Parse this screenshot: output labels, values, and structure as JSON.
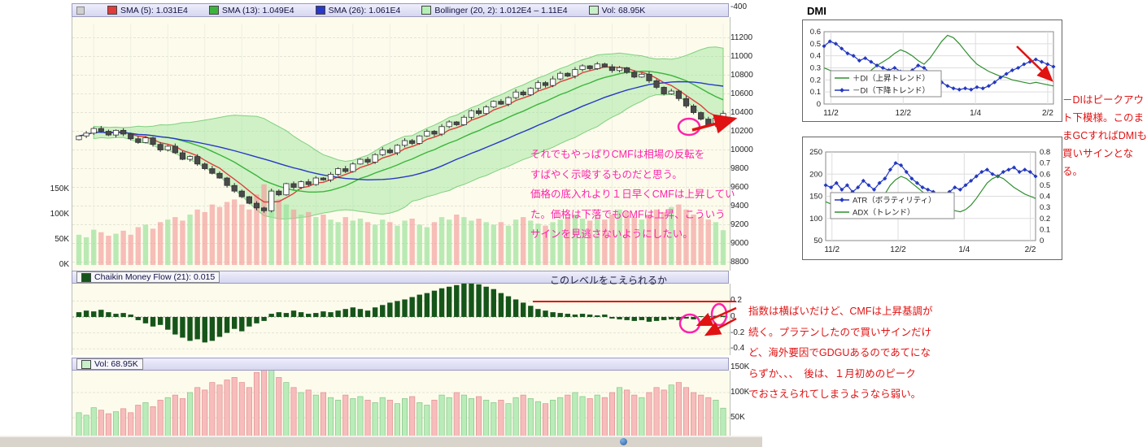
{
  "main_chart": {
    "legend": [
      {
        "label": "SMA (5): 1.031E4",
        "color": "#e03c3c"
      },
      {
        "label": "SMA (13): 1.049E4",
        "color": "#3cb43c"
      },
      {
        "label": "SMA (26): 1.061E4",
        "color": "#2838c8"
      },
      {
        "label": "Bollinger (20, 2): 1.012E4 – 1.11E4",
        "color": "#b4f0b4"
      },
      {
        "label": "Vol: 68.95K",
        "color": "#c8f0c8"
      }
    ],
    "top_axis_label": "-400",
    "price_axis_labels": [
      "11200",
      "11000",
      "10800",
      "10600",
      "10400",
      "10200",
      "10000",
      "9800",
      "9600",
      "9400",
      "9200",
      "9000",
      "8800"
    ],
    "volume_axis_labels": [
      "150K",
      "100K",
      "50K",
      "0K"
    ]
  },
  "cmf_panel": {
    "legend_label": "Chaikin Money Flow (21): 0.015",
    "legend_color": "#16551a",
    "axis_labels": [
      "0.2",
      "0",
      "-0.2",
      "-0.4"
    ]
  },
  "vol_panel": {
    "legend_label": "Vol: 68.95K",
    "legend_color": "#c8f0c8",
    "axis_labels": [
      "150K",
      "100K",
      "50K"
    ]
  },
  "annotations": {
    "pink_color": "#ff22aa",
    "red_color": "#e01212",
    "pink_note_lines": [
      "それでもやっぱりCMFは相場の反転を",
      "すばやく示唆するものだと思う。",
      "価格の底入れより１日早くCMFは上昇してい",
      "た。価格は下落でもCMFは上昇、こういう",
      "サインを見逃さないようにしたい。"
    ],
    "cmf_level_label": "このレベルをこえられるか",
    "dmi_note_lines": [
      "－DIはピークアウ",
      "ト下模様。このま",
      "まGCすればDMIも",
      "買いサインとな",
      "る。"
    ],
    "cmf_note_lines": [
      "指数は横ばいだけど、CMFは上昇基調が",
      "続く。プラテンしたので買いサインだけ",
      "ど、海外要因でGDGUあるのであてにな",
      "らずか、、、　後は、１月初めのピーク",
      "でおさえられてしまうようなら弱い。"
    ]
  },
  "chart_data": [
    {
      "name": "price",
      "type": "candlestick",
      "ylim": [
        8800,
        11300
      ],
      "close": [
        10150,
        10180,
        10230,
        10200,
        10160,
        10210,
        10170,
        10120,
        10080,
        10130,
        10060,
        10000,
        10040,
        9970,
        9900,
        9930,
        9850,
        9800,
        9750,
        9700,
        9620,
        9560,
        9500,
        9430,
        9380,
        9350,
        9560,
        9520,
        9640,
        9600,
        9660,
        9630,
        9700,
        9680,
        9740,
        9800,
        9770,
        9850,
        9900,
        9870,
        9950,
        10000,
        9970,
        10050,
        10100,
        10070,
        10150,
        10200,
        10170,
        10250,
        10300,
        10270,
        10350,
        10420,
        10390,
        10460,
        10520,
        10490,
        10560,
        10620,
        10590,
        10660,
        10720,
        10690,
        10760,
        10820,
        10790,
        10860,
        10900,
        10870,
        10920,
        10890,
        10850,
        10880,
        10830,
        10780,
        10810,
        10740,
        10670,
        10600,
        10630,
        10550,
        10470,
        10400,
        10330,
        10270,
        10340,
        10390
      ],
      "volume_k": [
        60,
        55,
        70,
        65,
        58,
        62,
        68,
        60,
        75,
        80,
        72,
        85,
        90,
        95,
        88,
        100,
        110,
        105,
        120,
        115,
        125,
        130,
        120,
        110,
        140,
        160,
        150,
        130,
        120,
        110,
        100,
        105,
        95,
        100,
        90,
        85,
        95,
        88,
        92,
        85,
        80,
        90,
        85,
        78,
        88,
        92,
        80,
        75,
        85,
        95,
        90,
        100,
        95,
        88,
        92,
        85,
        80,
        85,
        78,
        90,
        95,
        88,
        82,
        78,
        85,
        90,
        95,
        100,
        92,
        88,
        95,
        90,
        100,
        110,
        105,
        95,
        90,
        100,
        110,
        105,
        115,
        120,
        110,
        100,
        95,
        90,
        85,
        69
      ]
    },
    {
      "name": "cmf",
      "type": "bar",
      "ylim": [
        -0.45,
        0.45
      ],
      "level_line": 0.17,
      "values": [
        0.06,
        0.08,
        0.07,
        0.09,
        0.06,
        0.04,
        0.05,
        0.03,
        -0.04,
        -0.08,
        -0.12,
        -0.1,
        -0.16,
        -0.22,
        -0.26,
        -0.3,
        -0.28,
        -0.32,
        -0.3,
        -0.25,
        -0.2,
        -0.15,
        -0.18,
        -0.12,
        -0.08,
        -0.05,
        0.04,
        0.06,
        0.05,
        0.08,
        0.06,
        0.04,
        0.05,
        0.07,
        0.06,
        0.08,
        0.1,
        0.12,
        0.1,
        0.08,
        0.12,
        0.15,
        0.18,
        0.2,
        0.22,
        0.25,
        0.28,
        0.3,
        0.33,
        0.36,
        0.38,
        0.4,
        0.42,
        0.44,
        0.41,
        0.38,
        0.35,
        0.3,
        0.26,
        0.22,
        0.18,
        0.14,
        0.1,
        0.08,
        0.06,
        0.05,
        0.04,
        0.03,
        0.04,
        0.03,
        0.02,
        0.03,
        -0.02,
        -0.03,
        -0.04,
        -0.05,
        -0.04,
        -0.06,
        -0.05,
        -0.04,
        -0.03,
        -0.04,
        -0.02,
        -0.03,
        0.01,
        0.01,
        0.015,
        0.015
      ]
    },
    {
      "name": "volume",
      "type": "bar",
      "unit": "K",
      "ylim_k": [
        0,
        160
      ],
      "values_k": [
        60,
        55,
        70,
        65,
        58,
        62,
        68,
        60,
        75,
        80,
        72,
        85,
        90,
        95,
        88,
        100,
        110,
        105,
        120,
        115,
        125,
        130,
        120,
        110,
        140,
        160,
        150,
        130,
        120,
        110,
        100,
        105,
        95,
        100,
        90,
        85,
        95,
        88,
        92,
        85,
        80,
        90,
        85,
        78,
        88,
        92,
        80,
        75,
        85,
        95,
        90,
        100,
        95,
        88,
        92,
        85,
        80,
        85,
        78,
        90,
        95,
        88,
        82,
        78,
        85,
        90,
        95,
        100,
        92,
        88,
        95,
        90,
        100,
        110,
        105,
        95,
        90,
        100,
        110,
        105,
        115,
        120,
        110,
        100,
        95,
        90,
        85,
        69
      ]
    },
    {
      "name": "dmi",
      "type": "line",
      "title": "DMI",
      "ylim": [
        0,
        0.6
      ],
      "y_tick_labels": [
        "0.6",
        "0.5",
        "0.4",
        "0.3",
        "0.2",
        "0.1",
        "0"
      ],
      "x_tick_labels": [
        "11/2",
        "12/2",
        "1/4",
        "2/2"
      ],
      "series": [
        {
          "name": "＋DI（上昇トレンド）",
          "color": "#2f8f2f",
          "values": [
            0.3,
            0.28,
            0.26,
            0.25,
            0.27,
            0.24,
            0.22,
            0.25,
            0.28,
            0.32,
            0.35,
            0.38,
            0.42,
            0.45,
            0.43,
            0.4,
            0.36,
            0.33,
            0.38,
            0.45,
            0.52,
            0.57,
            0.55,
            0.5,
            0.44,
            0.38,
            0.33,
            0.3,
            0.27,
            0.25,
            0.23,
            0.22,
            0.2,
            0.19,
            0.18,
            0.17,
            0.18,
            0.17,
            0.16,
            0.15
          ]
        },
        {
          "name": "－DI（下降トレンド）",
          "color": "#2438c0",
          "marker": "diamond",
          "values": [
            0.48,
            0.52,
            0.5,
            0.46,
            0.42,
            0.4,
            0.36,
            0.38,
            0.35,
            0.32,
            0.3,
            0.28,
            0.3,
            0.27,
            0.25,
            0.28,
            0.32,
            0.3,
            0.26,
            0.22,
            0.18,
            0.15,
            0.13,
            0.12,
            0.13,
            0.12,
            0.14,
            0.13,
            0.15,
            0.18,
            0.22,
            0.25,
            0.28,
            0.3,
            0.33,
            0.35,
            0.37,
            0.35,
            0.33,
            0.31
          ]
        }
      ]
    },
    {
      "name": "atr_adx",
      "type": "line",
      "left_ylim": [
        50,
        250
      ],
      "right_ylim": [
        0,
        0.8
      ],
      "left_y_tick_labels": [
        "250",
        "200",
        "150",
        "100",
        "50"
      ],
      "right_y_tick_labels": [
        "0.8",
        "0.7",
        "0.6",
        "0.5",
        "0.4",
        "0.3",
        "0.2",
        "0.1",
        "0"
      ],
      "x_tick_labels": [
        "11/2",
        "12/2",
        "1/4",
        "2/2"
      ],
      "series": [
        {
          "name": "ATR（ボラティリティ）",
          "color": "#2438c0",
          "marker": "diamond",
          "axis": "left",
          "values": [
            175,
            170,
            180,
            165,
            175,
            160,
            170,
            185,
            175,
            165,
            180,
            190,
            210,
            225,
            220,
            205,
            190,
            180,
            170,
            165,
            160,
            155,
            150,
            160,
            170,
            165,
            175,
            185,
            195,
            205,
            210,
            200,
            195,
            205,
            210,
            215,
            205,
            210,
            205,
            195
          ]
        },
        {
          "name": "ADX（トレンド）",
          "color": "#2f8f2f",
          "axis": "right",
          "values": [
            0.35,
            0.33,
            0.3,
            0.28,
            0.26,
            0.25,
            0.24,
            0.26,
            0.28,
            0.3,
            0.35,
            0.42,
            0.5,
            0.55,
            0.58,
            0.56,
            0.52,
            0.48,
            0.44,
            0.4,
            0.36,
            0.33,
            0.3,
            0.28,
            0.27,
            0.26,
            0.28,
            0.32,
            0.38,
            0.45,
            0.52,
            0.56,
            0.58,
            0.56,
            0.52,
            0.48,
            0.45,
            0.42,
            0.4,
            0.38
          ]
        }
      ]
    }
  ]
}
